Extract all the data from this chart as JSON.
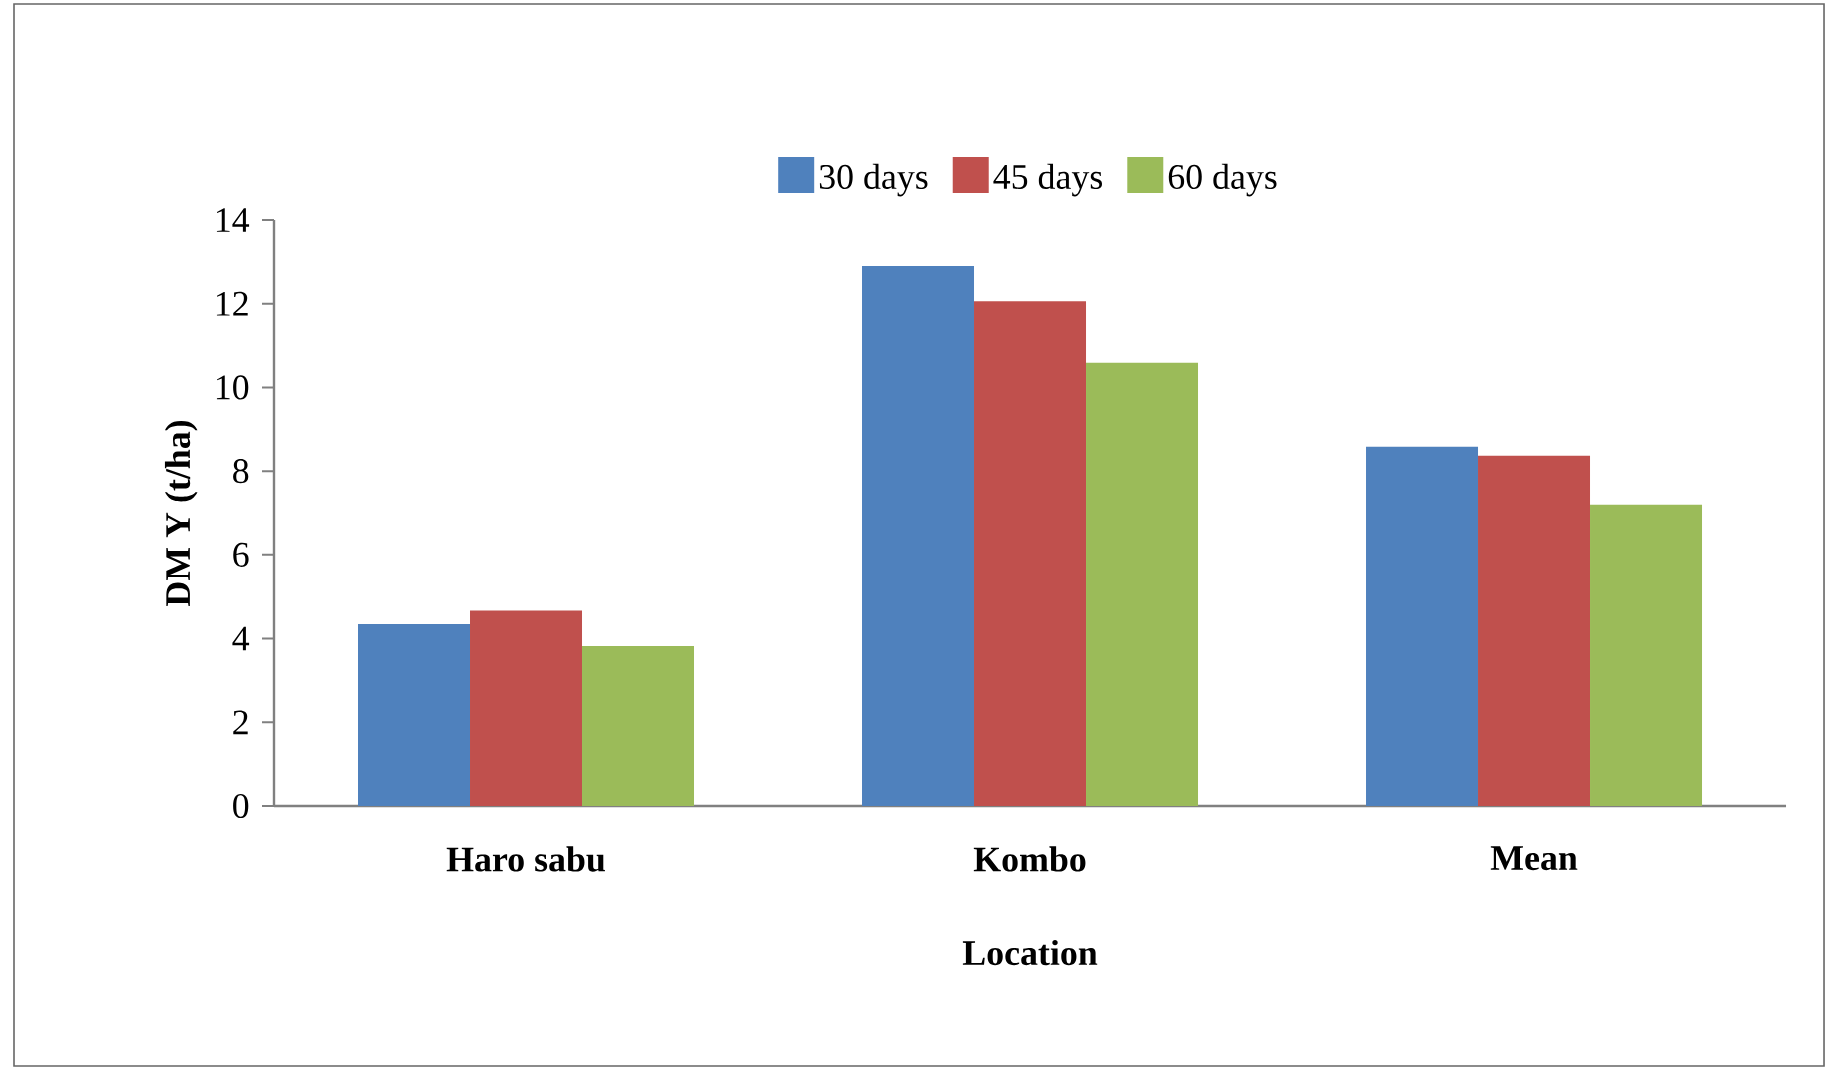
{
  "chart_data": {
    "type": "bar",
    "xlabel": "Location",
    "ylabel": "DM Y (t/ha)",
    "categories": [
      "Haro sabu",
      "Kombo",
      "Mean"
    ],
    "series": [
      {
        "name": "30 days",
        "color": "#4f81bd",
        "values": [
          4.35,
          12.9,
          8.58
        ]
      },
      {
        "name": "45 days",
        "color": "#c0504d",
        "values": [
          4.67,
          12.06,
          8.37
        ]
      },
      {
        "name": "60 days",
        "color": "#9bbb59",
        "values": [
          3.82,
          10.59,
          7.2
        ]
      }
    ],
    "ylim": [
      0,
      14
    ],
    "yticks": [
      0,
      2,
      4,
      6,
      8,
      10,
      12,
      14
    ],
    "grid": false,
    "legend": "top"
  }
}
